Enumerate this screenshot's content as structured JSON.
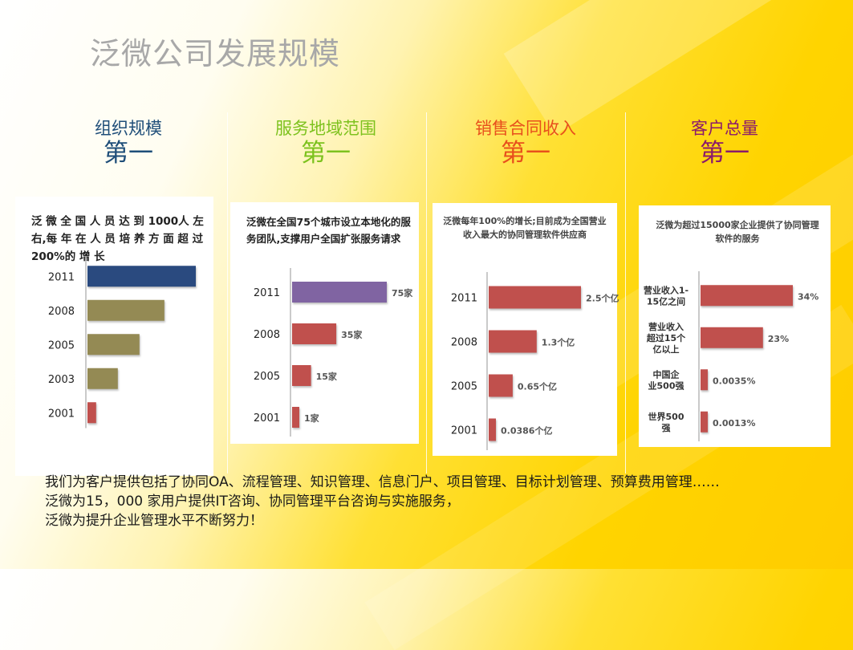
{
  "page_title": "泛微公司发展规模",
  "columns": [
    {
      "category": "组织规模",
      "rank": "第一",
      "color": "#1f4e79"
    },
    {
      "category": "服务地域范围",
      "rank": "第一",
      "color": "#7dc21e"
    },
    {
      "category": "销售合同收入",
      "rank": "第一",
      "color": "#e8501c"
    },
    {
      "category": "客户总量",
      "rank": "第一",
      "color": "#8b1a6b"
    }
  ],
  "cards": {
    "c1": {
      "text": "泛 微 全 国 人 员 达 到 1000人 左 右,每 年 在 人 员 培 养 方 面 超 过 200%的 增 长"
    },
    "c2": {
      "text": "泛微在全国75个城市设立本地化的服务团队,支撑用户全国扩张服务请求"
    },
    "c3": {
      "text": "泛微每年100%的增长;目前成为全国营业收入最大的协同管理软件供应商"
    },
    "c4": {
      "text": "泛微为超过15000家企业提供了协同管理软件的服务"
    }
  },
  "chart_data": [
    {
      "type": "bar",
      "orientation": "horizontal",
      "categories": [
        "2011",
        "2008",
        "2005",
        "2003",
        "2001"
      ],
      "values": [
        1000,
        710,
        480,
        280,
        80
      ],
      "data_labels": [],
      "colors": [
        "#2a4a7f",
        "#948a54",
        "#948a54",
        "#948a54",
        "#c0504d"
      ]
    },
    {
      "type": "bar",
      "orientation": "horizontal",
      "categories": [
        "2011",
        "2008",
        "2005",
        "2001"
      ],
      "values": [
        75,
        35,
        15,
        1
      ],
      "data_labels": [
        "75家",
        "35家",
        "15家",
        "1家"
      ],
      "colors": [
        "#8064a2",
        "#c0504d",
        "#c0504d",
        "#c0504d"
      ]
    },
    {
      "type": "bar",
      "orientation": "horizontal",
      "categories": [
        "2011",
        "2008",
        "2005",
        "2001"
      ],
      "values": [
        2.5,
        1.3,
        0.65,
        0.0386
      ],
      "data_labels": [
        "2.5个亿",
        "1.3个亿",
        "0.65个亿",
        "0.0386个亿"
      ],
      "colors": [
        "#c0504d",
        "#c0504d",
        "#c0504d",
        "#c0504d"
      ]
    },
    {
      "type": "bar",
      "orientation": "horizontal",
      "categories": [
        "营业收入1-15亿之间",
        "营业收入超过15个亿以上",
        "中国企业500强",
        "世界500强"
      ],
      "values": [
        34,
        23,
        0.0035,
        0.0013
      ],
      "data_labels": [
        "34%",
        "23%",
        "0.0035%",
        "0.0013%"
      ],
      "colors": [
        "#c0504d",
        "#c0504d",
        "#c0504d",
        "#c0504d"
      ]
    }
  ],
  "footer": {
    "line1": "我们为客户提供包括了协同OA、流程管理、知识管理、信息门户、项目管理、目标计划管理、预算费用管理……",
    "line2": "泛微为15，000 家用户提供IT咨询、协同管理平台咨询与实施服务，",
    "line3": "泛微为提升企业管理水平不断努力！"
  }
}
